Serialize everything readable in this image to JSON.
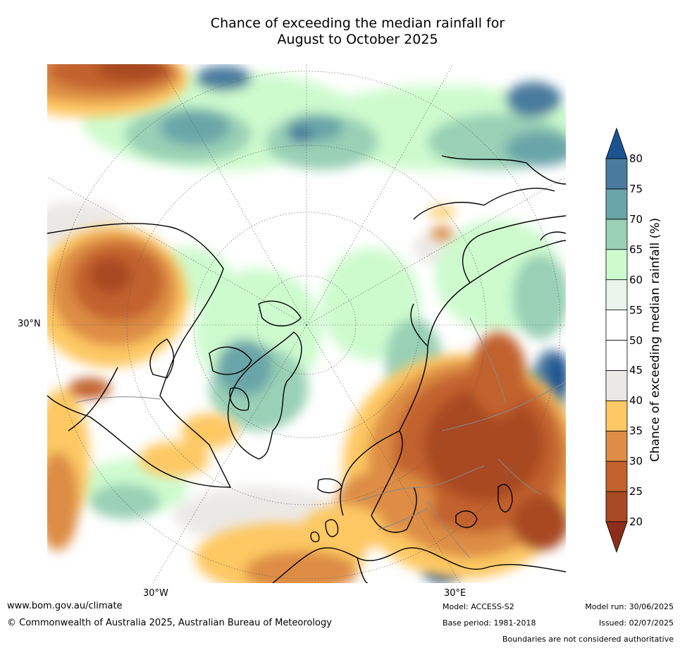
{
  "title": {
    "line1": "Chance of exceeding the median rainfall for",
    "line2": "August to October 2025"
  },
  "map": {
    "projection": "north-polar-stereographic",
    "lat_labels": [
      "30°N"
    ],
    "lon_labels": [
      "30°W",
      "30°E"
    ]
  },
  "colorbar": {
    "label": "Chance of exceeding median rainfall (%)",
    "ticks": [
      "20",
      "25",
      "30",
      "35",
      "40",
      "45",
      "50",
      "55",
      "60",
      "65",
      "70",
      "75",
      "80"
    ],
    "bins": [
      {
        "range": "below 20",
        "color": "#8c2d1a"
      },
      {
        "range": "20-25",
        "color": "#a84a24"
      },
      {
        "range": "25-30",
        "color": "#c2622e"
      },
      {
        "range": "30-35",
        "color": "#dd8d45"
      },
      {
        "range": "35-40",
        "color": "#fec864"
      },
      {
        "range": "40-45",
        "color": "#ebe9e6"
      },
      {
        "range": "45-50",
        "color": "#ffffff"
      },
      {
        "range": "50-55",
        "color": "#ffffff"
      },
      {
        "range": "55-60",
        "color": "#e9f4ea"
      },
      {
        "range": "60-65",
        "color": "#cdfbce"
      },
      {
        "range": "65-70",
        "color": "#99d0b6"
      },
      {
        "range": "70-75",
        "color": "#6aa5a9"
      },
      {
        "range": "75-80",
        "color": "#4a7b9e"
      },
      {
        "range": "above 80",
        "color": "#1a5393"
      }
    ]
  },
  "footer": {
    "website": "www.bom.gov.au/climate",
    "copyright": "© Commonwealth of Australia 2025, Australian Bureau of Meteorology",
    "model": "Model: ACCESS-S2",
    "base_period": "Base period: 1981-2018",
    "model_run": "Model run: 30/06/2025",
    "issued": "Issued: 02/07/2025",
    "disclaimer": "Boundaries are not considered authoritative"
  }
}
